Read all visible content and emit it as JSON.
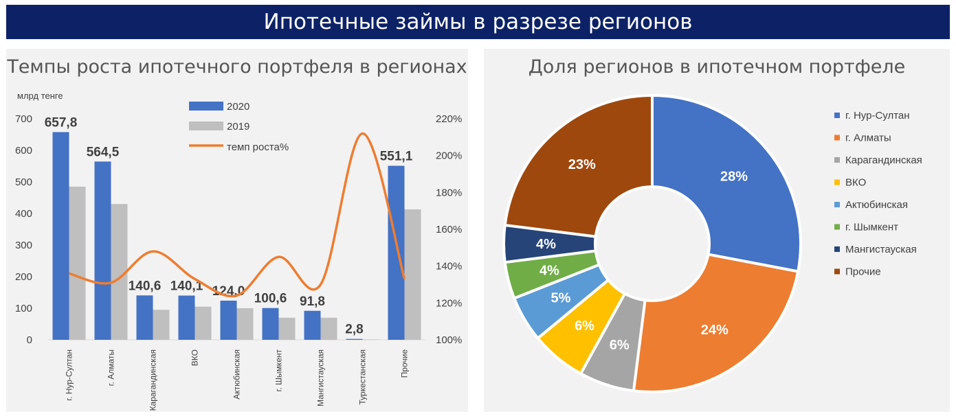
{
  "banner_title": "Ипотечные займы в разрезе регионов",
  "chart_data": [
    {
      "type": "bar",
      "title": "Темпы роста ипотечного портфеля в регионах",
      "ylabel": "млрд тенге",
      "ylim": [
        0,
        700
      ],
      "yticks": [
        "0",
        "100",
        "200",
        "300",
        "400",
        "500",
        "600",
        "700"
      ],
      "y2lim": [
        1.0,
        2.2
      ],
      "y2ticks": [
        "100%",
        "120%",
        "140%",
        "160%",
        "180%",
        "200%",
        "220%"
      ],
      "categories": [
        "г. Нур-Султан",
        "г. Алматы",
        "Карагандинская",
        "ВКО",
        "Актюбинская",
        "г. Шымкент",
        "Мангистауская",
        "Туркестанская",
        "Прочие"
      ],
      "series": [
        {
          "name": "2020",
          "type": "bar",
          "color": "#4472c4",
          "values": [
            657.8,
            564.5,
            140.6,
            140.1,
            124.0,
            100.6,
            91.8,
            2.8,
            551.1
          ]
        },
        {
          "name": "2019",
          "type": "bar",
          "color": "#bfbfbf",
          "values": [
            485,
            430,
            95,
            105,
            100,
            70,
            70,
            1.3,
            413
          ]
        },
        {
          "name": "темп роста%",
          "type": "line",
          "axis": "right",
          "color": "#ed7d31",
          "values": [
            1.36,
            1.31,
            1.48,
            1.33,
            1.24,
            1.45,
            1.3,
            2.12,
            1.33
          ]
        }
      ],
      "data_labels": [
        "657,8",
        "564,5",
        "140,6",
        "140,1",
        "124,0",
        "100,6",
        "91,8",
        "2,8",
        "551,1"
      ],
      "legend": "top-center"
    },
    {
      "type": "pie",
      "title": "Доля регионов в ипотечном портфеле",
      "donut": true,
      "labels": [
        "г. Нур-Султан",
        "г. Алматы",
        "Карагандинская",
        "ВКО",
        "Актюбинская",
        "г. Шымкент",
        "Мангистауская",
        "Прочие"
      ],
      "values": [
        28,
        24,
        6,
        6,
        5,
        4,
        4,
        23
      ],
      "data_labels": [
        "28%",
        "24%",
        "6%",
        "6%",
        "5%",
        "4%",
        "4%",
        "23%"
      ],
      "colors": [
        "#4472c4",
        "#ed7d31",
        "#a5a5a5",
        "#ffc000",
        "#5b9bd5",
        "#70ad47",
        "#264478",
        "#9e480e"
      ],
      "legend": "right"
    }
  ]
}
